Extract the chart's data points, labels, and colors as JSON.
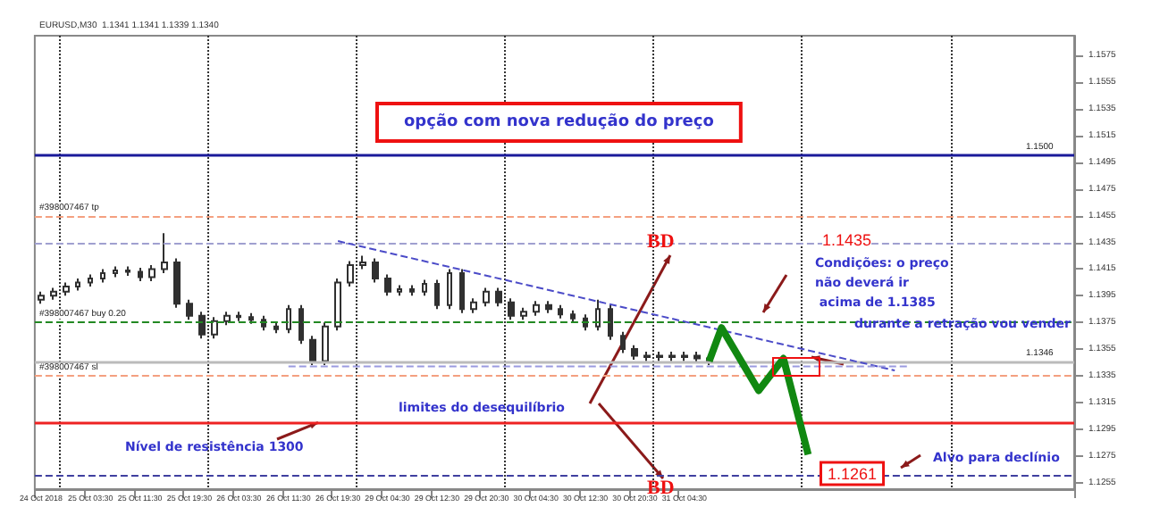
{
  "chart_data": {
    "type": "candlestick",
    "title": "EURUSD,M30  1.1341 1.1341 1.1339 1.1340",
    "categories": [
      "24 Oct 2018",
      null,
      null,
      null,
      "25 Oct 03:30",
      null,
      null,
      null,
      "25 Oct 11:30",
      null,
      null,
      null,
      "25 Oct 19:30",
      null,
      null,
      null,
      "26 Oct 03:30",
      null,
      null,
      null,
      "26 Oct 11:30",
      null,
      null,
      null,
      "26 Oct 19:30",
      null,
      null,
      null,
      "29 Oct 04:30",
      null,
      null,
      null,
      "29 Oct 12:30",
      null,
      null,
      null,
      "29 Oct 20:30",
      null,
      null,
      null,
      "30 Oct 04:30",
      null,
      null,
      null,
      "30 Oct 12:30",
      null,
      null,
      null,
      "30 Oct 20:30",
      null,
      null,
      null,
      "31 Oct 04:30",
      null,
      null,
      null,
      null,
      null,
      null,
      null,
      null,
      null,
      null,
      null,
      null,
      null,
      null,
      null,
      null,
      null,
      null,
      null,
      null,
      null,
      null,
      null,
      null,
      null,
      null,
      null,
      null,
      null,
      null,
      null
    ],
    "color": "#303030",
    "ohlc": [
      [
        1.1392,
        1.1398,
        1.1389,
        1.1395
      ],
      [
        1.1395,
        1.1401,
        1.1392,
        1.1398
      ],
      [
        1.1398,
        1.1405,
        1.1395,
        1.1402
      ],
      [
        1.1402,
        1.1408,
        1.1399,
        1.1405
      ],
      [
        1.1405,
        1.1411,
        1.1402,
        1.1408
      ],
      [
        1.1408,
        1.1415,
        1.1405,
        1.1412
      ],
      [
        1.1412,
        1.1417,
        1.1409,
        1.1414
      ],
      [
        1.1414,
        1.1417,
        1.141,
        1.1413
      ],
      [
        1.1413,
        1.1416,
        1.1406,
        1.1409
      ],
      [
        1.1409,
        1.1418,
        1.1406,
        1.1415
      ],
      [
        1.1415,
        1.1442,
        1.1412,
        1.142
      ],
      [
        1.142,
        1.1423,
        1.1386,
        1.1389
      ],
      [
        1.1389,
        1.1392,
        1.1377,
        1.138
      ],
      [
        1.138,
        1.1383,
        1.1363,
        1.1366
      ],
      [
        1.1366,
        1.1379,
        1.1363,
        1.1376
      ],
      [
        1.1376,
        1.1383,
        1.1373,
        1.138
      ],
      [
        1.138,
        1.1383,
        1.1376,
        1.1379
      ],
      [
        1.1379,
        1.1382,
        1.1374,
        1.1377
      ],
      [
        1.1377,
        1.138,
        1.1369,
        1.1372
      ],
      [
        1.1372,
        1.1375,
        1.1367,
        1.137
      ],
      [
        1.137,
        1.1388,
        1.1367,
        1.1385
      ],
      [
        1.1385,
        1.1388,
        1.1359,
        1.1362
      ],
      [
        1.1362,
        1.1365,
        1.1343,
        1.1346
      ],
      [
        1.1346,
        1.1375,
        1.1343,
        1.1372
      ],
      [
        1.1372,
        1.1408,
        1.1369,
        1.1405
      ],
      [
        1.1405,
        1.1421,
        1.1402,
        1.1418
      ],
      [
        1.1418,
        1.1425,
        1.1415,
        1.142
      ],
      [
        1.142,
        1.1423,
        1.1405,
        1.1408
      ],
      [
        1.1408,
        1.1411,
        1.1395,
        1.1398
      ],
      [
        1.1398,
        1.1403,
        1.1395,
        1.14
      ],
      [
        1.14,
        1.1403,
        1.1395,
        1.1398
      ],
      [
        1.1398,
        1.1407,
        1.1395,
        1.1404
      ],
      [
        1.1404,
        1.1407,
        1.1385,
        1.1388
      ],
      [
        1.1388,
        1.1415,
        1.1385,
        1.1412
      ],
      [
        1.1412,
        1.1415,
        1.1382,
        1.1385
      ],
      [
        1.1385,
        1.1393,
        1.1382,
        1.139
      ],
      [
        1.139,
        1.1401,
        1.1387,
        1.1398
      ],
      [
        1.1398,
        1.1401,
        1.1387,
        1.139
      ],
      [
        1.139,
        1.1393,
        1.1377,
        1.138
      ],
      [
        1.138,
        1.1386,
        1.1377,
        1.1383
      ],
      [
        1.1383,
        1.1391,
        1.138,
        1.1388
      ],
      [
        1.1388,
        1.1391,
        1.1382,
        1.1385
      ],
      [
        1.1385,
        1.1388,
        1.1378,
        1.1381
      ],
      [
        1.1381,
        1.1384,
        1.1375,
        1.1378
      ],
      [
        1.1378,
        1.1381,
        1.1369,
        1.1372
      ],
      [
        1.1372,
        1.1392,
        1.1369,
        1.1385
      ],
      [
        1.1385,
        1.1388,
        1.1362,
        1.1365
      ],
      [
        1.1365,
        1.1368,
        1.1352,
        1.1355
      ],
      [
        1.1355,
        1.1358,
        1.1347,
        1.135
      ],
      [
        1.135,
        1.1353,
        1.1346,
        1.1349
      ],
      [
        1.1349,
        1.1353,
        1.1346,
        1.135
      ],
      [
        1.135,
        1.1353,
        1.1346,
        1.1349
      ],
      [
        1.1349,
        1.1353,
        1.1346,
        1.135
      ],
      [
        1.135,
        1.1353,
        1.1345,
        1.1348
      ],
      [
        1.1348,
        1.1351,
        1.1343,
        1.1346
      ],
      null,
      null,
      null,
      null,
      null,
      null,
      null,
      null,
      null,
      null,
      null,
      null,
      null,
      null,
      null,
      null,
      null,
      null,
      null,
      null,
      null,
      null,
      null,
      null,
      null,
      null,
      null,
      null,
      null
    ],
    "series": [
      {
        "type": "line",
        "color": "#4b4bc8",
        "line_style": "dashed",
        "values": [
          null,
          null,
          null,
          null,
          null,
          null,
          null,
          null,
          null,
          null,
          null,
          null,
          null,
          null,
          null,
          null,
          null,
          null,
          null,
          null,
          null,
          null,
          null,
          null,
          1.1436,
          null,
          null,
          null,
          null,
          null,
          null,
          null,
          null,
          null,
          null,
          null,
          null,
          null,
          null,
          null,
          null,
          null,
          null,
          null,
          null,
          null,
          null,
          null,
          null,
          null,
          null,
          null,
          null,
          null,
          null,
          null,
          null,
          null,
          null,
          null,
          null,
          null,
          null,
          null,
          null,
          null,
          null,
          null,
          null,
          1.1339,
          null,
          null,
          null,
          null,
          null,
          null,
          null,
          null,
          null,
          null,
          null,
          null,
          null,
          null
        ]
      },
      {
        "type": "line",
        "color": "#9a9ae0",
        "line_style": "dashed",
        "values": [
          null,
          null,
          null,
          null,
          null,
          null,
          null,
          null,
          null,
          null,
          null,
          null,
          null,
          null,
          null,
          null,
          null,
          null,
          null,
          null,
          1.1342,
          null,
          null,
          null,
          null,
          null,
          null,
          null,
          null,
          null,
          null,
          null,
          null,
          null,
          null,
          null,
          null,
          null,
          null,
          null,
          null,
          null,
          null,
          null,
          null,
          null,
          null,
          null,
          null,
          null,
          null,
          null,
          null,
          null,
          null,
          null,
          null,
          null,
          null,
          null,
          null,
          null,
          null,
          null,
          null,
          null,
          null,
          null,
          null,
          null,
          1.1342,
          null,
          null,
          null,
          null,
          null,
          null,
          null,
          null,
          null,
          null,
          null,
          null,
          null
        ]
      },
      {
        "type": "line",
        "color": "#118811",
        "line_style": "solid",
        "values": [
          null,
          null,
          null,
          null,
          null,
          null,
          null,
          null,
          null,
          null,
          null,
          null,
          null,
          null,
          null,
          null,
          null,
          null,
          null,
          null,
          null,
          null,
          null,
          null,
          null,
          null,
          null,
          null,
          null,
          null,
          null,
          null,
          null,
          null,
          null,
          null,
          null,
          null,
          null,
          null,
          null,
          null,
          null,
          null,
          null,
          null,
          null,
          null,
          null,
          null,
          null,
          null,
          null,
          null,
          1.1346,
          1.1371,
          null,
          null,
          1.1324,
          null,
          1.1348,
          null,
          1.1276,
          null,
          null,
          null,
          null,
          null,
          null,
          null,
          null,
          null,
          null,
          null,
          null,
          null,
          null,
          null,
          null,
          null,
          null,
          null,
          null,
          null
        ]
      }
    ],
    "ylim": [
      1.125,
      1.159
    ],
    "yticks": [
      1.1255,
      1.1275,
      1.1295,
      1.1315,
      1.1335,
      1.1355,
      1.1375,
      1.1395,
      1.1415,
      1.1435,
      1.1455,
      1.1475,
      1.1495,
      1.1515,
      1.1535,
      1.1555,
      1.1575
    ],
    "grid": "x",
    "ref_lines": [
      {
        "axis": "y",
        "value": 1.15,
        "color": "#1a1a9a",
        "line_style": "solid",
        "label": "1.1500"
      },
      {
        "axis": "y",
        "value": 1.1455,
        "color": "#f4a080",
        "line_style": "dashed",
        "label": "#398007467 tp"
      },
      {
        "axis": "y",
        "value": 1.1375,
        "color": "#228822",
        "line_style": "dashed",
        "label": "#398007467 buy 0.20"
      },
      {
        "axis": "y",
        "value": 1.1335,
        "color": "#f4a080",
        "line_style": "dashed",
        "label": "#398007467 sl"
      },
      {
        "axis": "y",
        "value": 1.1346,
        "color": "#bbbbbb",
        "line_style": "solid",
        "label": "1.1346"
      },
      {
        "axis": "y",
        "value": 1.13,
        "color": "#ee2222",
        "line_style": "solid",
        "label": null
      },
      {
        "axis": "y",
        "value": 1.1435,
        "color": "#a0a0d0",
        "line_style": "dashed",
        "label": "1.1435"
      },
      {
        "axis": "y",
        "value": 1.1261,
        "color": "#4040a0",
        "line_style": "dashed",
        "label": "1.1261"
      }
    ],
    "annotations": [
      "opção com nova redução do preço",
      "Condições: o preço\nnão deverá ir\n acima de 1.1385",
      "durante a retração vou vender",
      "limites do desequilíbrio",
      {
        "text": "Nível de resistência 1300",
        "y": 1.13
      },
      "Alvo para declínio",
      "BD",
      "BD"
    ]
  }
}
